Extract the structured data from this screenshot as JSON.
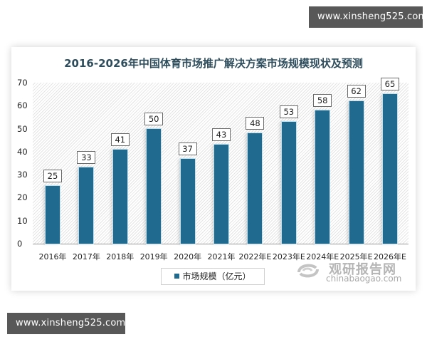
{
  "watermarks": {
    "top": "www.xinsheng525.com",
    "bottom": "www.xinsheng525.com"
  },
  "brand": {
    "name_cn": "观研报告网",
    "name_en": "chinabaogao.com",
    "icon": "swirl-logo-icon"
  },
  "colors": {
    "bar": "#1f6a8e",
    "title": "#2e4d5c",
    "watermark_bg": "#585858"
  },
  "chart_data": {
    "type": "bar",
    "title": "2016-2026年中国体育市场推广解决方案市场规模现状及预测",
    "categories": [
      "2016年",
      "2017年",
      "2018年",
      "2019年",
      "2020年",
      "2021年",
      "2022年E",
      "2023年E",
      "2024年E",
      "2025年E",
      "2026年E"
    ],
    "series": [
      {
        "name": "市场规模（亿元）",
        "values": [
          25,
          33,
          41,
          50,
          37,
          43,
          48,
          53,
          58,
          62,
          65
        ]
      }
    ],
    "xlabel": "",
    "ylabel": "",
    "ylim": [
      0,
      70
    ],
    "yticks": [
      0,
      10,
      20,
      30,
      40,
      50,
      60,
      70
    ],
    "grid": false,
    "background": "diagonal-hatch",
    "data_labels": true,
    "legend_position": "bottom"
  }
}
